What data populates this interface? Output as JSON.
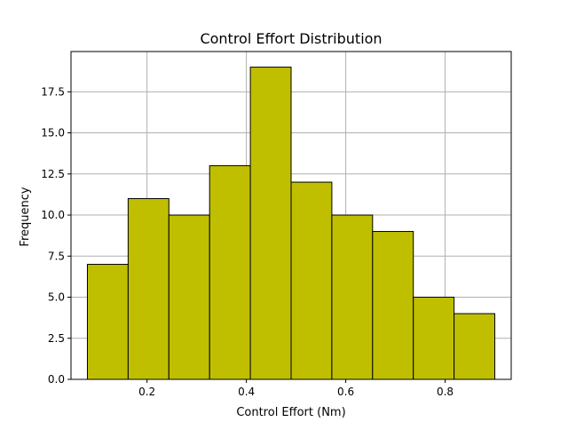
{
  "chart_data": {
    "type": "bar",
    "title": "Control Effort Distribution",
    "xlabel": "Control Effort (Nm)",
    "ylabel": "Frequency",
    "bin_edges": [
      0.08,
      0.162,
      0.244,
      0.326,
      0.408,
      0.49,
      0.572,
      0.654,
      0.736,
      0.818,
      0.9
    ],
    "values": [
      7,
      11,
      10,
      13,
      19,
      12,
      10,
      9,
      5,
      4
    ],
    "xlim": [
      0.047,
      0.933
    ],
    "ylim": [
      0,
      19.95
    ],
    "xticks": [
      0.2,
      0.4,
      0.6,
      0.8
    ],
    "xtick_labels": [
      "0.2",
      "0.4",
      "0.6",
      "0.8"
    ],
    "yticks": [
      0,
      2.5,
      5,
      7.5,
      10,
      12.5,
      15,
      17.5
    ],
    "ytick_labels": [
      "0.0",
      "2.5",
      "5.0",
      "7.5",
      "10.0",
      "12.5",
      "15.0",
      "17.5"
    ],
    "grid": true,
    "bar_color": "#bfbf00",
    "edge_color": "#000000",
    "grid_color": "#b0b0b0"
  }
}
